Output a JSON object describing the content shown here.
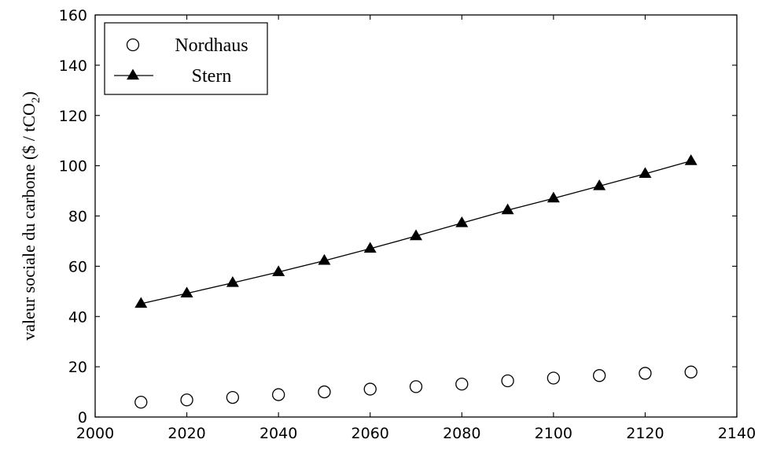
{
  "chart_data": {
    "type": "scatter",
    "title": "",
    "xlabel": "",
    "ylabel_main": "valeur sociale du carbone ($ / tCO",
    "ylabel_sub": "2",
    "ylabel_close": ")",
    "xlim": [
      2000,
      2140
    ],
    "ylim": [
      0,
      160
    ],
    "xticks": [
      2000,
      2020,
      2040,
      2060,
      2080,
      2100,
      2120,
      2140
    ],
    "yticks": [
      0,
      20,
      40,
      60,
      80,
      100,
      120,
      140,
      160
    ],
    "grid": false,
    "legend_position": "top-left",
    "series": [
      {
        "name": "Nordhaus",
        "marker": "open-circle",
        "line": false,
        "color": "#000000",
        "x": [
          2010,
          2020,
          2030,
          2040,
          2050,
          2060,
          2070,
          2080,
          2090,
          2100,
          2110,
          2120,
          2130
        ],
        "y": [
          5.9,
          6.8,
          7.8,
          8.9,
          10.0,
          11.1,
          12.1,
          13.1,
          14.4,
          15.5,
          16.5,
          17.4,
          17.9
        ]
      },
      {
        "name": "Stern",
        "marker": "filled-triangle",
        "line": true,
        "color": "#000000",
        "x": [
          2010,
          2020,
          2030,
          2040,
          2050,
          2060,
          2070,
          2080,
          2090,
          2100,
          2110,
          2120,
          2130
        ],
        "y": [
          45.1,
          49.2,
          53.4,
          57.7,
          62.2,
          67.0,
          72.0,
          77.2,
          82.3,
          87.0,
          91.9,
          96.8,
          101.9
        ]
      }
    ]
  }
}
